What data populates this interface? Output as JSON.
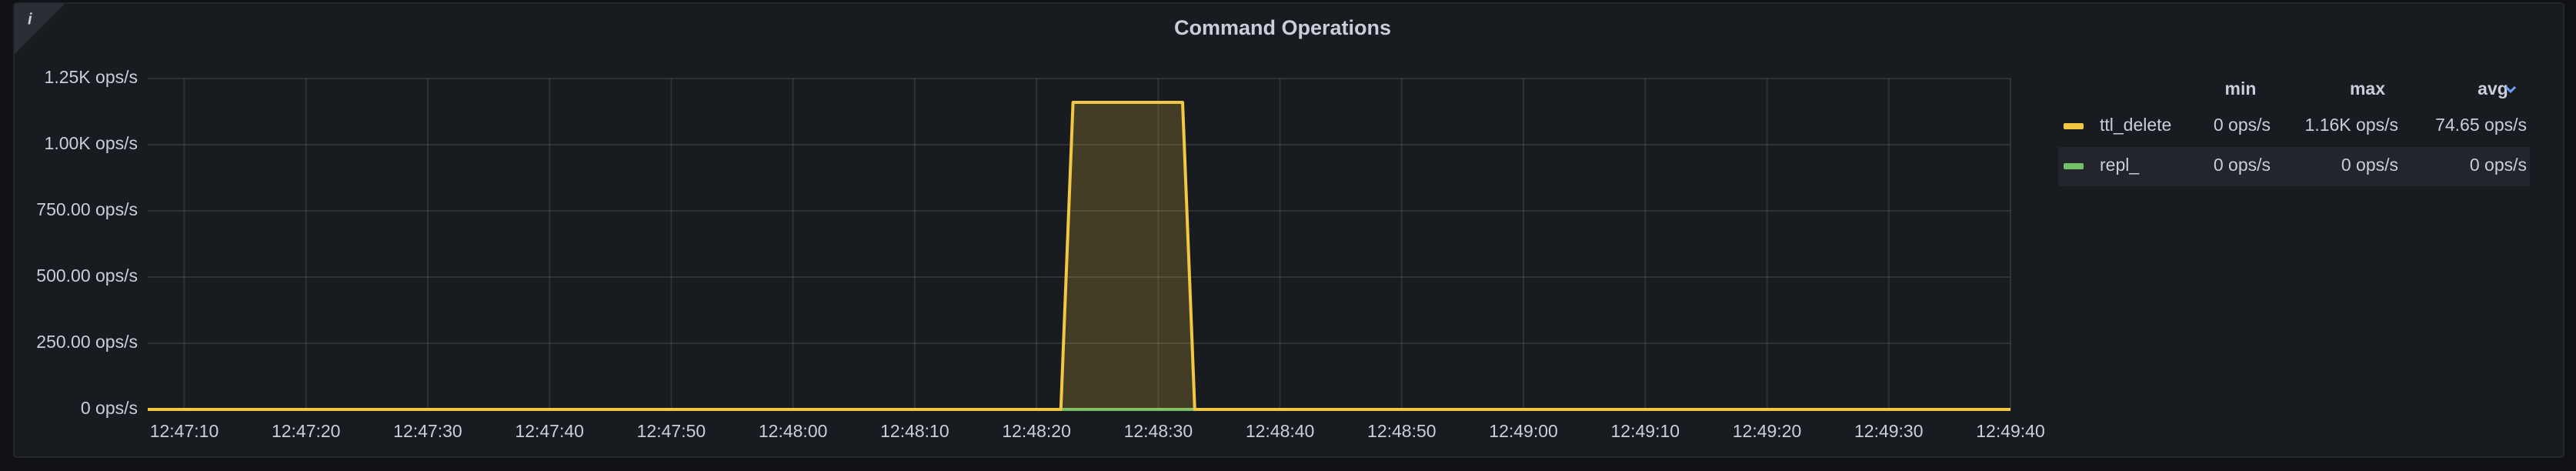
{
  "info_icon": "i",
  "chart_data": {
    "type": "line",
    "title": "Command Operations",
    "x": [
      "12:47:07",
      "12:48:22",
      "12:48:23",
      "12:48:32",
      "12:48:33",
      "12:49:40"
    ],
    "xlim": [
      "12:47:07",
      "12:49:40"
    ],
    "xticks": [
      "12:47:10",
      "12:47:20",
      "12:47:30",
      "12:47:40",
      "12:47:50",
      "12:48:00",
      "12:48:10",
      "12:48:20",
      "12:48:30",
      "12:48:40",
      "12:48:50",
      "12:49:00",
      "12:49:10",
      "12:49:20",
      "12:49:30",
      "12:49:40"
    ],
    "ylim": [
      0,
      1250
    ],
    "yticks": [
      {
        "value": 0,
        "label": "0 ops/s"
      },
      {
        "value": 250,
        "label": "250.00 ops/s"
      },
      {
        "value": 500,
        "label": "500.00 ops/s"
      },
      {
        "value": 750,
        "label": "750.00 ops/s"
      },
      {
        "value": 1000,
        "label": "1.00K ops/s"
      },
      {
        "value": 1250,
        "label": "1.25K ops/s"
      }
    ],
    "grid": true,
    "fill_opacity": 0.2,
    "legend": {
      "position": "right",
      "columns": [
        "min",
        "max",
        "avg"
      ]
    },
    "series": [
      {
        "name": "ttl_delete",
        "color": "#f2c744",
        "values": [
          0,
          0,
          1160,
          1160,
          0,
          0
        ],
        "legend_values": [
          "0 ops/s",
          "1.16K ops/s",
          "74.65 ops/s"
        ]
      },
      {
        "name": "repl_",
        "color": "#73bf69",
        "values": [
          0,
          0,
          0,
          0,
          0,
          0
        ],
        "legend_values": [
          "0 ops/s",
          "0 ops/s",
          "0 ops/s"
        ]
      }
    ]
  }
}
